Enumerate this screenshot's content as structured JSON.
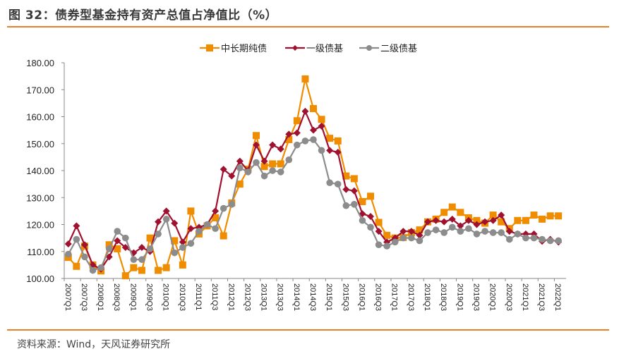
{
  "header": {
    "title": "图 32：债券型基金持有资产总值占净值比（%）"
  },
  "footer": {
    "source": "资料来源：Wind，天风证券研究所"
  },
  "colors": {
    "rule": "#e8822a",
    "series": [
      "#f08c00",
      "#a0112f",
      "#8c8c8c"
    ]
  },
  "chart_data": {
    "type": "line",
    "title": "债券型基金持有资产总值占净值比（%）",
    "xlabel": "",
    "ylabel": "",
    "ylim": [
      100,
      180
    ],
    "yticks": [
      100,
      110,
      120,
      130,
      140,
      150,
      160,
      170,
      180
    ],
    "ytick_labels": [
      "100.00",
      "110.00",
      "120.00",
      "130.00",
      "140.00",
      "150.00",
      "160.00",
      "170.00",
      "180.00"
    ],
    "grid": false,
    "legend_position": "top-center",
    "x": [
      "2007Q1",
      "2007Q2",
      "2007Q3",
      "2007Q4",
      "2008Q1",
      "2008Q2",
      "2008Q3",
      "2008Q4",
      "2009Q1",
      "2009Q2",
      "2009Q3",
      "2009Q4",
      "2010Q1",
      "2010Q2",
      "2010Q3",
      "2010Q4",
      "2011Q1",
      "2011Q2",
      "2011Q3",
      "2011Q4",
      "2012Q1",
      "2012Q2",
      "2012Q3",
      "2012Q4",
      "2013Q1",
      "2013Q2",
      "2013Q3",
      "2013Q4",
      "2014Q1",
      "2014Q2",
      "2014Q3",
      "2014Q4",
      "2015Q1",
      "2015Q2",
      "2015Q3",
      "2015Q4",
      "2016Q1",
      "2016Q2",
      "2016Q3",
      "2016Q4",
      "2017Q1",
      "2017Q2",
      "2017Q3",
      "2017Q4",
      "2018Q1",
      "2018Q2",
      "2018Q3",
      "2018Q4",
      "2019Q1",
      "2019Q2",
      "2019Q3",
      "2019Q4",
      "2020Q1",
      "2020Q2",
      "2020Q3",
      "2020Q4",
      "2021Q1",
      "2021Q2",
      "2021Q3",
      "2021Q4",
      "2022Q1"
    ],
    "x_tick_labels": [
      "2007Q1",
      "2007Q3",
      "2008Q1",
      "2008Q3",
      "2009Q1",
      "2009Q3",
      "2010Q1",
      "2010Q3",
      "2011Q1",
      "2011Q3",
      "2012Q1",
      "2012Q3",
      "2013Q1",
      "2013Q3",
      "2014Q1",
      "2014Q3",
      "2015Q1",
      "2015Q3",
      "2016Q1",
      "2016Q3",
      "2017Q1",
      "2017Q3",
      "2018Q1",
      "2018Q3",
      "2019Q1",
      "2019Q3",
      "2020Q1",
      "2020Q3",
      "2021Q1",
      "2021Q3",
      "2022Q1"
    ],
    "series": [
      {
        "name": "中长期纯债",
        "marker": "square",
        "values": [
          107.8,
          104.5,
          112.0,
          105.0,
          102.8,
          112.5,
          111.0,
          101.0,
          104.0,
          103.0,
          115.0,
          103.0,
          104.0,
          114.0,
          105.0,
          125.0,
          116.5,
          119.5,
          122.5,
          115.8,
          128.0,
          135.0,
          140.5,
          153.0,
          141.5,
          142.5,
          142.5,
          151.5,
          158.5,
          174.0,
          163.0,
          159.0,
          152.0,
          151.0,
          138.0,
          137.0,
          128.5,
          130.5,
          120.8,
          116.0,
          115.0,
          115.2,
          117.0,
          118.0,
          121.0,
          122.0,
          124.5,
          126.5,
          124.5,
          122.5,
          121.5,
          120.5,
          123.5,
          121.0,
          118.5,
          121.5,
          121.5,
          123.5,
          122.0,
          123.2,
          123.2
        ]
      },
      {
        "name": "一级债基",
        "marker": "diamond",
        "values": [
          112.8,
          119.5,
          112.5,
          105.0,
          103.5,
          108.0,
          114.0,
          111.5,
          109.5,
          111.5,
          110.0,
          121.0,
          125.0,
          120.5,
          113.5,
          118.5,
          119.0,
          120.0,
          125.0,
          140.5,
          138.0,
          143.5,
          140.0,
          149.5,
          143.5,
          149.5,
          148.0,
          153.5,
          154.0,
          162.0,
          155.0,
          156.5,
          147.5,
          146.8,
          133.0,
          132.5,
          124.0,
          123.0,
          117.5,
          113.5,
          115.0,
          117.5,
          117.5,
          116.0,
          121.0,
          121.5,
          121.0,
          122.0,
          119.5,
          121.5,
          120.0,
          121.0,
          121.5,
          123.5,
          117.5,
          116.5,
          116.5,
          116.5,
          113.8,
          114.5,
          113.5
        ]
      },
      {
        "name": "二级债基",
        "marker": "circle",
        "values": [
          109.0,
          114.5,
          108.0,
          103.0,
          104.0,
          111.0,
          117.5,
          115.0,
          107.0,
          107.0,
          111.0,
          116.5,
          122.0,
          109.5,
          111.5,
          113.0,
          117.5,
          120.0,
          118.5,
          126.0,
          127.5,
          141.0,
          139.5,
          143.0,
          138.0,
          140.0,
          139.5,
          144.0,
          149.5,
          151.0,
          151.5,
          147.5,
          135.5,
          135.0,
          127.0,
          127.5,
          121.5,
          119.0,
          112.5,
          112.0,
          113.5,
          115.0,
          115.0,
          114.0,
          117.0,
          118.0,
          117.0,
          119.0,
          117.5,
          118.5,
          116.5,
          117.5,
          117.0,
          117.0,
          114.5,
          116.5,
          115.0,
          115.0,
          114.5,
          114.0,
          114.0
        ]
      }
    ]
  }
}
